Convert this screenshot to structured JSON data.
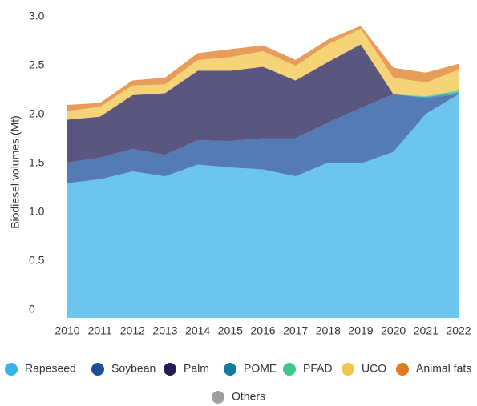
{
  "chart_data": {
    "type": "stacked-area",
    "ylabel": "Biodiesel volumes (Mt)",
    "categories": [
      "2010",
      "2011",
      "2012",
      "2013",
      "2014",
      "2015",
      "2016",
      "2017",
      "2018",
      "2019",
      "2020",
      "2021",
      "2022"
    ],
    "ylim": [
      0,
      3
    ],
    "yticks": [
      0,
      0.5,
      {
        "value": 1,
        "label": "1.0"
      },
      1.5,
      {
        "value": 2,
        "label": "2.0"
      },
      2.5,
      {
        "value": 3,
        "label": "3.0"
      }
    ],
    "series": [
      {
        "name": "Rapeseed",
        "color": "#39b1ea",
        "values": [
          1.38,
          1.42,
          1.5,
          1.45,
          1.57,
          1.54,
          1.52,
          1.45,
          1.59,
          1.58,
          1.7,
          2.09,
          2.29
        ]
      },
      {
        "name": "Soybean",
        "color": "#1b4f9a",
        "values": [
          0.21,
          0.22,
          0.23,
          0.22,
          0.25,
          0.27,
          0.32,
          0.39,
          0.41,
          0.57,
          0.59,
          0.16,
          0
        ]
      },
      {
        "name": "Palm",
        "color": "#231d55",
        "values": [
          0.44,
          0.42,
          0.55,
          0.63,
          0.71,
          0.72,
          0.73,
          0.59,
          0.62,
          0.65,
          0,
          0,
          0
        ]
      },
      {
        "name": "POME",
        "color": "#157a9c",
        "values": [
          0,
          0,
          0,
          0,
          0,
          0,
          0,
          0,
          0,
          0,
          0,
          0.01,
          0.02
        ]
      },
      {
        "name": "PFAD",
        "color": "#3cc88a",
        "values": [
          0,
          0,
          0,
          0,
          0,
          0,
          0,
          0,
          0,
          0,
          0,
          0.01,
          0.02
        ]
      },
      {
        "name": "UCO",
        "color": "#f2c54b",
        "values": [
          0.09,
          0.1,
          0.1,
          0.09,
          0.11,
          0.14,
          0.16,
          0.15,
          0.18,
          0.16,
          0.17,
          0.14,
          0.21
        ]
      },
      {
        "name": "Animal fats",
        "color": "#e07b22",
        "values": [
          0.06,
          0.04,
          0.05,
          0.07,
          0.07,
          0.08,
          0.06,
          0.06,
          0.05,
          0.03,
          0.1,
          0.1,
          0.06
        ]
      },
      {
        "name": "Others",
        "color": "#9e9e9e",
        "values": [
          0,
          0,
          0,
          0,
          0,
          0,
          0,
          0,
          0,
          0,
          0,
          0,
          0
        ]
      }
    ]
  }
}
